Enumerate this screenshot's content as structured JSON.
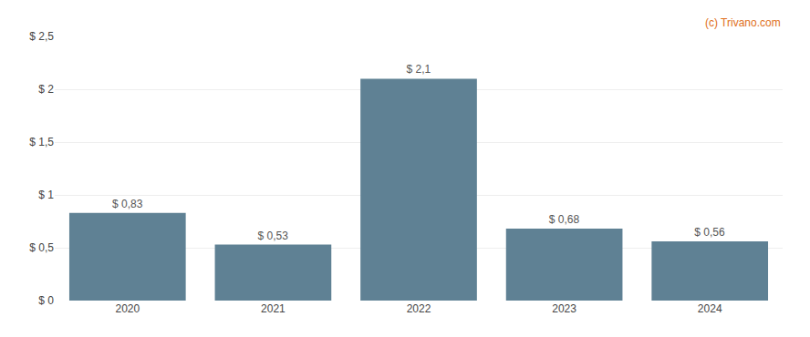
{
  "chart_data": {
    "type": "bar",
    "categories": [
      "2020",
      "2021",
      "2022",
      "2023",
      "2024"
    ],
    "values": [
      0.83,
      0.53,
      2.1,
      0.68,
      0.56
    ],
    "value_labels": [
      "$ 0,83",
      "$ 0,53",
      "$ 2,1",
      "$ 0,68",
      "$ 0,56"
    ],
    "data_labels": true,
    "color": "#5f8194",
    "ylim": [
      0,
      2.5
    ],
    "yticks": [
      {
        "value": 0,
        "label": "$ 0"
      },
      {
        "value": 0.5,
        "label": "$ 0,5"
      },
      {
        "value": 1.0,
        "label": "$ 1"
      },
      {
        "value": 1.5,
        "label": "$ 1,5"
      },
      {
        "value": 2.0,
        "label": "$ 2"
      },
      {
        "value": 2.5,
        "label": "$ 2,5"
      }
    ],
    "grid": true,
    "annotations": [
      {
        "text": "(c) Trivano.com",
        "color": "#e07020"
      }
    ]
  }
}
